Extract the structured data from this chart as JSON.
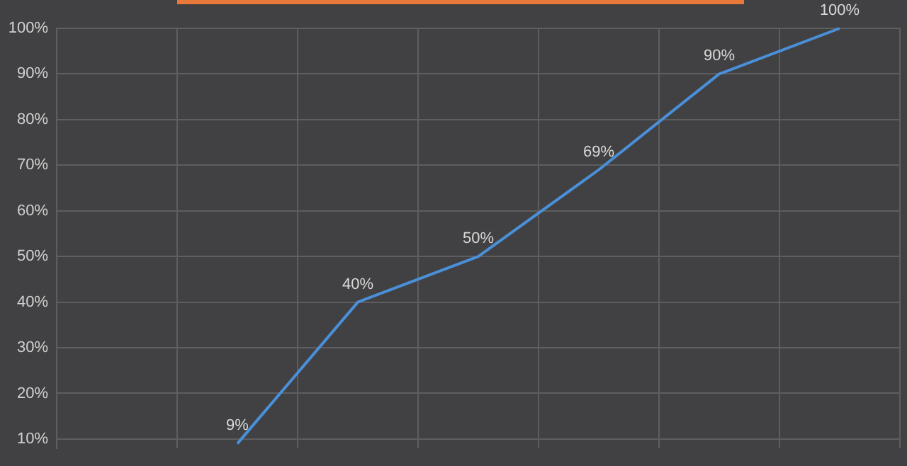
{
  "chart_data": {
    "type": "line",
    "categories": [
      null,
      null,
      null,
      null,
      null,
      null,
      null
    ],
    "series": [
      {
        "color": "#4a90d9",
        "values": [
          null,
          9,
          40,
          50,
          69,
          90,
          100
        ],
        "value_labels": [
          null,
          "9%",
          "40%",
          "50%",
          "69%",
          "90%",
          "100%"
        ]
      }
    ],
    "ylim": [
      8,
      100
    ],
    "yticks": [
      {
        "value": 10,
        "label": "10%"
      },
      {
        "value": 20,
        "label": "20%"
      },
      {
        "value": 30,
        "label": "30%"
      },
      {
        "value": 40,
        "label": "40%"
      },
      {
        "value": 50,
        "label": "50%"
      },
      {
        "value": 60,
        "label": "60%"
      },
      {
        "value": 70,
        "label": "70%"
      },
      {
        "value": 80,
        "label": "80%"
      },
      {
        "value": 90,
        "label": "90%"
      },
      {
        "value": 100,
        "label": "100%"
      }
    ],
    "grid": true,
    "legend": false,
    "marker": "none",
    "line_style": "solid",
    "tick_labels": "y"
  }
}
